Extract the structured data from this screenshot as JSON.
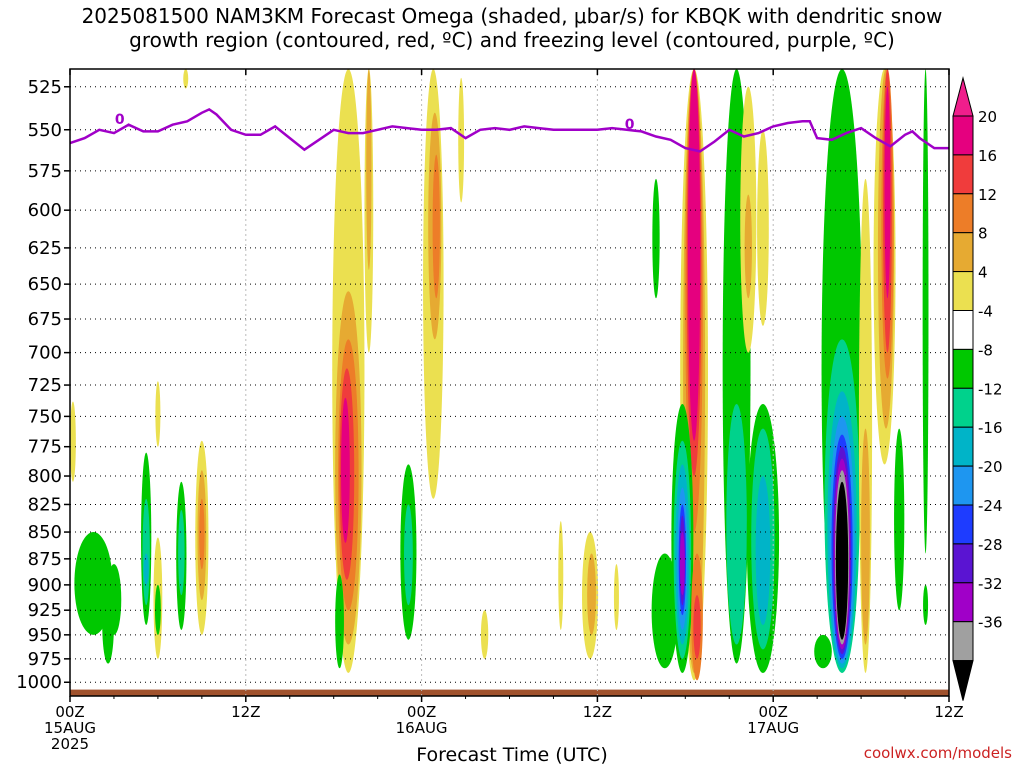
{
  "title": {
    "line1": "2025081500 NAM3KM Forecast Omega (shaded, μbar/s) for KBQK with dendritic snow",
    "line2": "growth region (contoured, red, ºC) and freezing level (contoured, purple, ºC)"
  },
  "credit": "coolwx.com/models",
  "chart_data": {
    "type": "heatmap",
    "xlabel": "Forecast Time (UTC)",
    "ylabel": "",
    "x_ticks": [
      {
        "hour": 0,
        "label": "00Z",
        "sub": [
          "15AUG",
          "2025"
        ]
      },
      {
        "hour": 12,
        "label": "12Z",
        "sub": []
      },
      {
        "hour": 24,
        "label": "00Z",
        "sub": [
          "16AUG"
        ]
      },
      {
        "hour": 36,
        "label": "12Z",
        "sub": []
      },
      {
        "hour": 48,
        "label": "00Z",
        "sub": [
          "17AUG"
        ]
      },
      {
        "hour": 60,
        "label": "12Z",
        "sub": []
      }
    ],
    "xlim": [
      0,
      60
    ],
    "y_ticks": [
      525,
      550,
      575,
      600,
      625,
      650,
      675,
      700,
      725,
      750,
      775,
      800,
      825,
      850,
      875,
      900,
      925,
      950,
      975,
      1000
    ],
    "ylim": [
      1015,
      515
    ],
    "y_scale": "log-pressure",
    "grid": true,
    "colorbar": {
      "labels": [
        "20",
        "16",
        "12",
        "8",
        "4",
        "-4",
        "-8",
        "-12",
        "-16",
        "-20",
        "-24",
        "-28",
        "-32",
        "-36"
      ],
      "colors": [
        "#e5007f",
        "#f03c3c",
        "#ed7d28",
        "#e6aa32",
        "#ebe050",
        "#ffffff",
        "#00c800",
        "#00d28c",
        "#00b4c8",
        "#1e96f0",
        "#1e3cff",
        "#5a14d2",
        "#a000c8",
        "#a0a0a0",
        "#000000"
      ],
      "top_color": "#f01e8c",
      "bottom_color": "#000000"
    },
    "freezing_level": {
      "label": "0",
      "color": "#a000c8",
      "points": [
        [
          0,
          558
        ],
        [
          1,
          555
        ],
        [
          2,
          550
        ],
        [
          3,
          552
        ],
        [
          4,
          547
        ],
        [
          5,
          551
        ],
        [
          6,
          551
        ],
        [
          7,
          547
        ],
        [
          8,
          545
        ],
        [
          9,
          540
        ],
        [
          9.5,
          538
        ],
        [
          10,
          541
        ],
        [
          11,
          550
        ],
        [
          12,
          553
        ],
        [
          13,
          553
        ],
        [
          14,
          548
        ],
        [
          15,
          555
        ],
        [
          16,
          562
        ],
        [
          17,
          556
        ],
        [
          18,
          550
        ],
        [
          19,
          552
        ],
        [
          20,
          552
        ],
        [
          21,
          550
        ],
        [
          22,
          548
        ],
        [
          23,
          549
        ],
        [
          24,
          550
        ],
        [
          25,
          550
        ],
        [
          26,
          549
        ],
        [
          27,
          555
        ],
        [
          28,
          550
        ],
        [
          29,
          549
        ],
        [
          30,
          550
        ],
        [
          31,
          548
        ],
        [
          32,
          549
        ],
        [
          33,
          550
        ],
        [
          34,
          550
        ],
        [
          35,
          550
        ],
        [
          36,
          550
        ],
        [
          37,
          549
        ],
        [
          38,
          550
        ],
        [
          39,
          551
        ],
        [
          40,
          554
        ],
        [
          41,
          556
        ],
        [
          42,
          561
        ],
        [
          43,
          563
        ],
        [
          44,
          557
        ],
        [
          45,
          550
        ],
        [
          46,
          554
        ],
        [
          47,
          552
        ],
        [
          48,
          548
        ],
        [
          49,
          546
        ],
        [
          50,
          545
        ],
        [
          50.5,
          545
        ],
        [
          51,
          555
        ],
        [
          52,
          556
        ],
        [
          53,
          552
        ],
        [
          54,
          549
        ],
        [
          55,
          555
        ],
        [
          56,
          560
        ],
        [
          57,
          553
        ],
        [
          57.5,
          551
        ],
        [
          58,
          555
        ],
        [
          59,
          561
        ],
        [
          60,
          561
        ]
      ]
    },
    "omega_cells": [
      {
        "hour": 0.2,
        "p_top": 738,
        "p_bot": 805,
        "half_width_h": 0.2,
        "value": 4
      },
      {
        "hour": 1.6,
        "p_top": 850,
        "p_bot": 950,
        "half_width_h": 1.3,
        "value": -4
      },
      {
        "hour": 2.6,
        "p_top": 900,
        "p_bot": 980,
        "half_width_h": 0.4,
        "value": -4
      },
      {
        "hour": 3.0,
        "p_top": 880,
        "p_bot": 950,
        "half_width_h": 0.5,
        "value": -4
      },
      {
        "hour": 5.2,
        "p_top": 780,
        "p_bot": 940,
        "half_width_h": 0.35,
        "value": -4
      },
      {
        "hour": 5.2,
        "p_top": 820,
        "p_bot": 920,
        "half_width_h": 0.25,
        "value": -8
      },
      {
        "hour": 5.2,
        "p_top": 870,
        "p_bot": 900,
        "half_width_h": 0.15,
        "value": -12
      },
      {
        "hour": 6.0,
        "p_top": 855,
        "p_bot": 975,
        "half_width_h": 0.3,
        "value": 4
      },
      {
        "hour": 6.0,
        "p_top": 900,
        "p_bot": 950,
        "half_width_h": 0.2,
        "value": -4
      },
      {
        "hour": 6.0,
        "p_top": 722,
        "p_bot": 775,
        "half_width_h": 0.12,
        "value": 4
      },
      {
        "hour": 7.6,
        "p_top": 805,
        "p_bot": 945,
        "half_width_h": 0.35,
        "value": -4
      },
      {
        "hour": 7.6,
        "p_top": 830,
        "p_bot": 910,
        "half_width_h": 0.22,
        "value": -8
      },
      {
        "hour": 9.0,
        "p_top": 770,
        "p_bot": 950,
        "half_width_h": 0.45,
        "value": 4
      },
      {
        "hour": 9.0,
        "p_top": 795,
        "p_bot": 915,
        "half_width_h": 0.3,
        "value": 8
      },
      {
        "hour": 9.0,
        "p_top": 820,
        "p_bot": 885,
        "half_width_h": 0.18,
        "value": 12
      },
      {
        "hour": 7.9,
        "p_top": 515,
        "p_bot": 526,
        "half_width_h": 0.1,
        "value": 4
      },
      {
        "hour": 19.0,
        "p_top": 515,
        "p_bot": 990,
        "half_width_h": 1.1,
        "value": 4
      },
      {
        "hour": 19.0,
        "p_top": 655,
        "p_bot": 960,
        "half_width_h": 0.9,
        "value": 8
      },
      {
        "hour": 19.0,
        "p_top": 690,
        "p_bot": 925,
        "half_width_h": 0.7,
        "value": 12
      },
      {
        "hour": 18.9,
        "p_top": 712,
        "p_bot": 895,
        "half_width_h": 0.5,
        "value": 16
      },
      {
        "hour": 18.8,
        "p_top": 735,
        "p_bot": 860,
        "half_width_h": 0.3,
        "value": 20
      },
      {
        "hour": 20.4,
        "p_top": 515,
        "p_bot": 700,
        "half_width_h": 0.3,
        "value": 4
      },
      {
        "hour": 20.4,
        "p_top": 515,
        "p_bot": 640,
        "half_width_h": 0.18,
        "value": 8
      },
      {
        "hour": 18.4,
        "p_top": 890,
        "p_bot": 985,
        "half_width_h": 0.3,
        "value": -4
      },
      {
        "hour": 23.1,
        "p_top": 790,
        "p_bot": 955,
        "half_width_h": 0.55,
        "value": -4
      },
      {
        "hour": 23.1,
        "p_top": 825,
        "p_bot": 920,
        "half_width_h": 0.3,
        "value": -8
      },
      {
        "hour": 24.8,
        "p_top": 515,
        "p_bot": 820,
        "half_width_h": 0.7,
        "value": 4
      },
      {
        "hour": 24.9,
        "p_top": 540,
        "p_bot": 690,
        "half_width_h": 0.45,
        "value": 8
      },
      {
        "hour": 25.0,
        "p_top": 565,
        "p_bot": 660,
        "half_width_h": 0.25,
        "value": 12
      },
      {
        "hour": 26.7,
        "p_top": 520,
        "p_bot": 595,
        "half_width_h": 0.2,
        "value": 4
      },
      {
        "hour": 28.3,
        "p_top": 925,
        "p_bot": 975,
        "half_width_h": 0.25,
        "value": 4
      },
      {
        "hour": 33.5,
        "p_top": 840,
        "p_bot": 945,
        "half_width_h": 0.15,
        "value": 4
      },
      {
        "hour": 35.5,
        "p_top": 850,
        "p_bot": 975,
        "half_width_h": 0.55,
        "value": 4
      },
      {
        "hour": 35.6,
        "p_top": 870,
        "p_bot": 950,
        "half_width_h": 0.3,
        "value": 8
      },
      {
        "hour": 37.3,
        "p_top": 880,
        "p_bot": 945,
        "half_width_h": 0.15,
        "value": 4
      },
      {
        "hour": 40.0,
        "p_top": 580,
        "p_bot": 660,
        "half_width_h": 0.25,
        "value": -4
      },
      {
        "hour": 40.6,
        "p_top": 870,
        "p_bot": 985,
        "half_width_h": 0.9,
        "value": -4
      },
      {
        "hour": 42.6,
        "p_top": 515,
        "p_bot": 998,
        "half_width_h": 0.95,
        "value": 4
      },
      {
        "hour": 42.6,
        "p_top": 515,
        "p_bot": 990,
        "half_width_h": 0.75,
        "value": 8
      },
      {
        "hour": 42.6,
        "p_top": 515,
        "p_bot": 850,
        "half_width_h": 0.6,
        "value": 12
      },
      {
        "hour": 42.6,
        "p_top": 515,
        "p_bot": 800,
        "half_width_h": 0.5,
        "value": 16
      },
      {
        "hour": 42.6,
        "p_top": 515,
        "p_bot": 770,
        "half_width_h": 0.42,
        "value": 20
      },
      {
        "hour": 41.8,
        "p_top": 740,
        "p_bot": 990,
        "half_width_h": 0.75,
        "value": -4
      },
      {
        "hour": 41.8,
        "p_top": 770,
        "p_bot": 975,
        "half_width_h": 0.6,
        "value": -8
      },
      {
        "hour": 41.8,
        "p_top": 790,
        "p_bot": 960,
        "half_width_h": 0.48,
        "value": -12
      },
      {
        "hour": 41.8,
        "p_top": 810,
        "p_bot": 945,
        "half_width_h": 0.35,
        "value": -16
      },
      {
        "hour": 41.8,
        "p_top": 825,
        "p_bot": 930,
        "half_width_h": 0.25,
        "value": -20
      },
      {
        "hour": 41.8,
        "p_top": 835,
        "p_bot": 920,
        "half_width_h": 0.18,
        "value": -24
      },
      {
        "hour": 41.8,
        "p_top": 850,
        "p_bot": 910,
        "half_width_h": 0.11,
        "value": -28
      },
      {
        "hour": 42.8,
        "p_top": 870,
        "p_bot": 998,
        "half_width_h": 0.4,
        "value": 12
      },
      {
        "hour": 42.8,
        "p_top": 910,
        "p_bot": 975,
        "half_width_h": 0.25,
        "value": 16
      },
      {
        "hour": 45.5,
        "p_top": 515,
        "p_bot": 980,
        "half_width_h": 0.95,
        "value": -4
      },
      {
        "hour": 45.5,
        "p_top": 740,
        "p_bot": 960,
        "half_width_h": 0.7,
        "value": -8
      },
      {
        "hour": 47.3,
        "p_top": 550,
        "p_bot": 680,
        "half_width_h": 0.4,
        "value": 4
      },
      {
        "hour": 47.3,
        "p_top": 740,
        "p_bot": 990,
        "half_width_h": 1.1,
        "value": -4
      },
      {
        "hour": 47.3,
        "p_top": 760,
        "p_bot": 965,
        "half_width_h": 0.8,
        "value": -8
      },
      {
        "hour": 47.3,
        "p_top": 800,
        "p_bot": 940,
        "half_width_h": 0.5,
        "value": -12
      },
      {
        "hour": 46.3,
        "p_top": 525,
        "p_bot": 700,
        "half_width_h": 0.55,
        "value": 4
      },
      {
        "hour": 46.3,
        "p_top": 590,
        "p_bot": 660,
        "half_width_h": 0.25,
        "value": 8
      },
      {
        "hour": 52.7,
        "p_top": 515,
        "p_bot": 985,
        "half_width_h": 1.4,
        "value": -4
      },
      {
        "hour": 52.7,
        "p_top": 690,
        "p_bot": 990,
        "half_width_h": 1.2,
        "value": -8
      },
      {
        "hour": 52.7,
        "p_top": 730,
        "p_bot": 985,
        "half_width_h": 1.0,
        "value": -12
      },
      {
        "hour": 52.7,
        "p_top": 750,
        "p_bot": 980,
        "half_width_h": 0.85,
        "value": -16
      },
      {
        "hour": 52.7,
        "p_top": 765,
        "p_bot": 975,
        "half_width_h": 0.72,
        "value": -20
      },
      {
        "hour": 52.7,
        "p_top": 775,
        "p_bot": 970,
        "half_width_h": 0.62,
        "value": -24
      },
      {
        "hour": 52.7,
        "p_top": 785,
        "p_bot": 965,
        "half_width_h": 0.55,
        "value": -28
      },
      {
        "hour": 52.7,
        "p_top": 795,
        "p_bot": 960,
        "half_width_h": 0.48,
        "value": -32
      },
      {
        "hour": 52.7,
        "p_top": 805,
        "p_bot": 955,
        "half_width_h": 0.42,
        "value": -36
      },
      {
        "hour": 51.4,
        "p_top": 950,
        "p_bot": 985,
        "half_width_h": 0.6,
        "value": -4
      },
      {
        "hour": 54.3,
        "p_top": 580,
        "p_bot": 990,
        "half_width_h": 0.45,
        "value": 4
      },
      {
        "hour": 54.3,
        "p_top": 760,
        "p_bot": 960,
        "half_width_h": 0.3,
        "value": 8
      },
      {
        "hour": 55.6,
        "p_top": 515,
        "p_bot": 790,
        "half_width_h": 0.75,
        "value": 4
      },
      {
        "hour": 55.7,
        "p_top": 515,
        "p_bot": 760,
        "half_width_h": 0.55,
        "value": 8
      },
      {
        "hour": 55.8,
        "p_top": 515,
        "p_bot": 720,
        "half_width_h": 0.42,
        "value": 12
      },
      {
        "hour": 55.8,
        "p_top": 515,
        "p_bot": 700,
        "half_width_h": 0.3,
        "value": 16
      },
      {
        "hour": 55.8,
        "p_top": 525,
        "p_bot": 660,
        "half_width_h": 0.2,
        "value": 20
      },
      {
        "hour": 56.6,
        "p_top": 760,
        "p_bot": 925,
        "half_width_h": 0.35,
        "value": -4
      },
      {
        "hour": 58.4,
        "p_top": 515,
        "p_bot": 870,
        "half_width_h": 0.2,
        "value": -4
      },
      {
        "hour": 58.4,
        "p_top": 900,
        "p_bot": 940,
        "half_width_h": 0.12,
        "value": -4
      }
    ]
  }
}
